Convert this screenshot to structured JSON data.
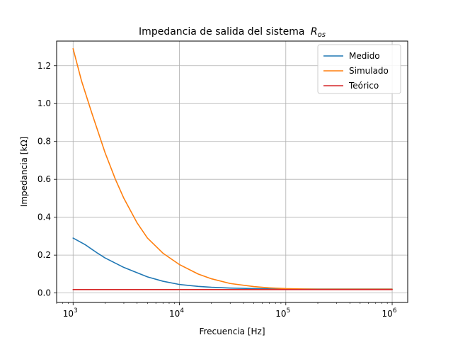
{
  "chart_data": {
    "type": "line",
    "title": "Impedancia de salida del sistema",
    "title_math": "R",
    "title_math_sub": "os",
    "xlabel": "Frecuencia [Hz]",
    "ylabel": "Impedancia [kΩ]",
    "xscale": "log",
    "xlim": [
      700,
      1400000
    ],
    "ylim": [
      -0.05,
      1.33
    ],
    "xticks": [
      1000,
      10000,
      100000,
      1000000
    ],
    "xtick_exponents": [
      "3",
      "4",
      "5",
      "6"
    ],
    "yticks": [
      0.0,
      0.2,
      0.4,
      0.6,
      0.8,
      1.0,
      1.2
    ],
    "ytick_labels": [
      "0.0",
      "0.2",
      "0.4",
      "0.6",
      "0.8",
      "1.0",
      "1.2"
    ],
    "grid": true,
    "legend_position": "top-right",
    "series": [
      {
        "name": "Medido",
        "color": "#1f77b4",
        "x": [
          1000,
          1300,
          1700,
          2000,
          3000,
          5000,
          7000,
          10000,
          15000,
          20000,
          30000,
          50000,
          70000,
          100000,
          150000,
          200000,
          300000,
          500000,
          700000,
          1000000
        ],
        "values": [
          0.29,
          0.255,
          0.21,
          0.185,
          0.135,
          0.085,
          0.062,
          0.045,
          0.035,
          0.03,
          0.026,
          0.023,
          0.022,
          0.021,
          0.021,
          0.021,
          0.021,
          0.021,
          0.021,
          0.021
        ]
      },
      {
        "name": "Simulado",
        "color": "#ff7f0e",
        "x": [
          1000,
          1200,
          1500,
          2000,
          2500,
          3000,
          4000,
          5000,
          7000,
          10000,
          15000,
          20000,
          30000,
          50000,
          70000,
          100000,
          150000,
          200000,
          300000,
          500000,
          1000000
        ],
        "values": [
          1.29,
          1.12,
          0.95,
          0.74,
          0.6,
          0.5,
          0.37,
          0.29,
          0.21,
          0.15,
          0.1,
          0.075,
          0.05,
          0.034,
          0.027,
          0.023,
          0.021,
          0.02,
          0.02,
          0.02,
          0.02
        ]
      },
      {
        "name": "Teórico",
        "color": "#d62728",
        "x": [
          1000,
          1000000
        ],
        "values": [
          0.018,
          0.018
        ]
      }
    ]
  }
}
